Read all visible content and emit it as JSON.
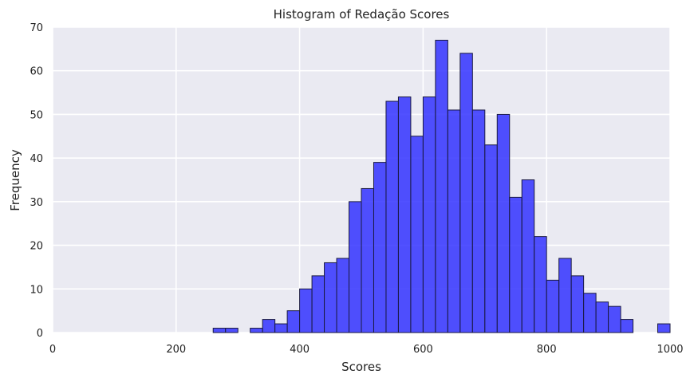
{
  "chart_data": {
    "type": "bar",
    "title": "Histogram of Redação Scores",
    "xlabel": "Scores",
    "ylabel": "Frequency",
    "xlim": [
      0,
      1000
    ],
    "ylim": [
      0,
      70
    ],
    "x_ticks": [
      0,
      200,
      400,
      600,
      800,
      1000
    ],
    "y_ticks": [
      0,
      10,
      20,
      30,
      40,
      50,
      60,
      70
    ],
    "grid": true,
    "background": "#eaeaf2",
    "bar_color": "#3333ff",
    "bar_edge_color": "#1a1a40",
    "bins": [
      {
        "start": 260,
        "end": 280,
        "count": 1
      },
      {
        "start": 280,
        "end": 300,
        "count": 1
      },
      {
        "start": 320,
        "end": 340,
        "count": 1
      },
      {
        "start": 340,
        "end": 360,
        "count": 3
      },
      {
        "start": 360,
        "end": 380,
        "count": 2
      },
      {
        "start": 380,
        "end": 400,
        "count": 5
      },
      {
        "start": 400,
        "end": 420,
        "count": 10
      },
      {
        "start": 420,
        "end": 440,
        "count": 13
      },
      {
        "start": 440,
        "end": 460,
        "count": 16
      },
      {
        "start": 460,
        "end": 480,
        "count": 17
      },
      {
        "start": 480,
        "end": 500,
        "count": 30
      },
      {
        "start": 500,
        "end": 520,
        "count": 33
      },
      {
        "start": 520,
        "end": 540,
        "count": 39
      },
      {
        "start": 540,
        "end": 560,
        "count": 53
      },
      {
        "start": 560,
        "end": 580,
        "count": 54
      },
      {
        "start": 580,
        "end": 600,
        "count": 45
      },
      {
        "start": 600,
        "end": 620,
        "count": 54
      },
      {
        "start": 620,
        "end": 640,
        "count": 67
      },
      {
        "start": 640,
        "end": 660,
        "count": 51
      },
      {
        "start": 660,
        "end": 680,
        "count": 64
      },
      {
        "start": 680,
        "end": 700,
        "count": 51
      },
      {
        "start": 700,
        "end": 720,
        "count": 43
      },
      {
        "start": 720,
        "end": 740,
        "count": 50
      },
      {
        "start": 740,
        "end": 760,
        "count": 31
      },
      {
        "start": 760,
        "end": 780,
        "count": 35
      },
      {
        "start": 780,
        "end": 800,
        "count": 22
      },
      {
        "start": 800,
        "end": 820,
        "count": 12
      },
      {
        "start": 820,
        "end": 840,
        "count": 17
      },
      {
        "start": 840,
        "end": 860,
        "count": 13
      },
      {
        "start": 860,
        "end": 880,
        "count": 9
      },
      {
        "start": 880,
        "end": 900,
        "count": 7
      },
      {
        "start": 900,
        "end": 920,
        "count": 6
      },
      {
        "start": 920,
        "end": 940,
        "count": 3
      },
      {
        "start": 980,
        "end": 1000,
        "count": 2
      }
    ]
  }
}
